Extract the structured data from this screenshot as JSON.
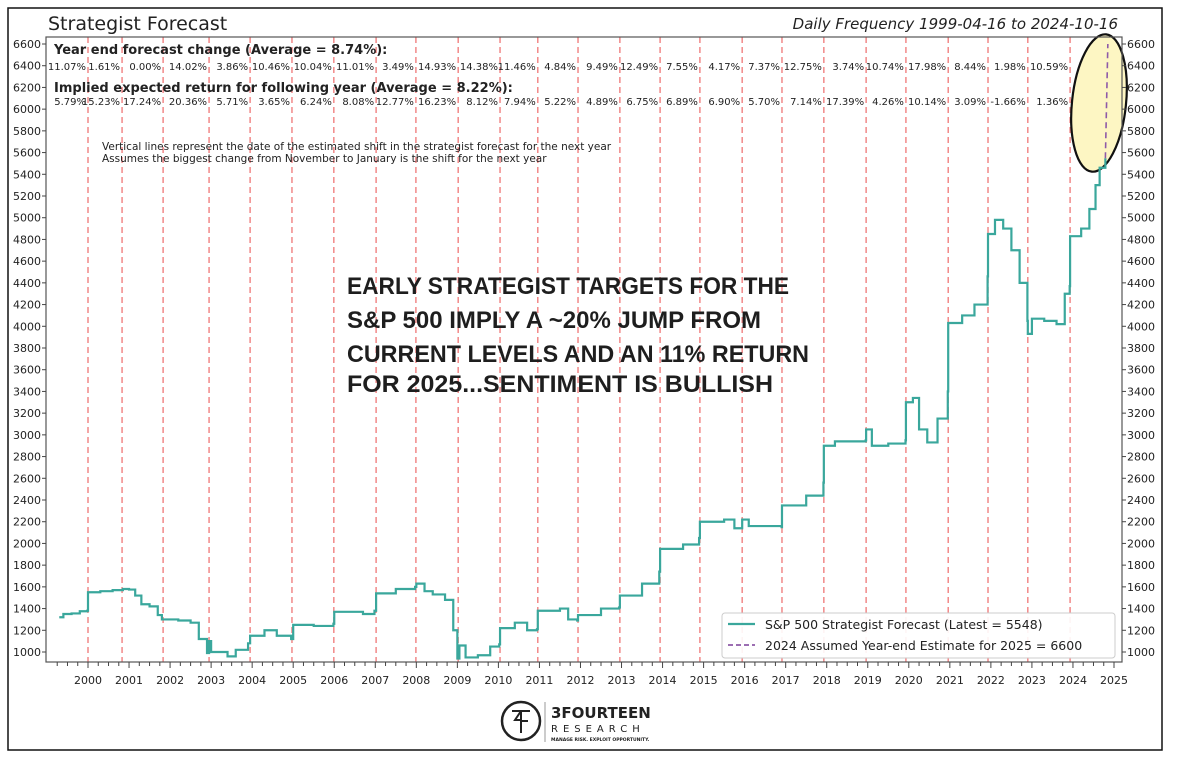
{
  "chart_data": {
    "type": "line",
    "title": "Strategist Forecast",
    "subtitle": "Daily Frequency 1999-04-16 to 2024-10-16",
    "xlim": [
      1999.3,
      2025.15
    ],
    "ylim": [
      880,
      6680
    ],
    "x_ticks": [
      "2000",
      "2001",
      "2002",
      "2003",
      "2004",
      "2005",
      "2006",
      "2007",
      "2008",
      "2009",
      "2010",
      "2011",
      "2012",
      "2013",
      "2014",
      "2015",
      "2016",
      "2017",
      "2018",
      "2019",
      "2020",
      "2021",
      "2022",
      "2023",
      "2024",
      "2025"
    ],
    "y_ticks": [
      1000,
      1200,
      1400,
      1600,
      1800,
      2000,
      2200,
      2400,
      2600,
      2800,
      3000,
      3200,
      3400,
      3600,
      3800,
      4000,
      4200,
      4400,
      4600,
      4800,
      5000,
      5200,
      5400,
      5600,
      5800,
      6000,
      6200,
      6400,
      6600
    ],
    "grid": false,
    "legend_placement": "lower-right",
    "colors": {
      "forecast": "#3aa79c",
      "estimate": "#8e5aa8",
      "shift_lines": "#f08080",
      "highlight_fill": "#fdf6c3"
    },
    "series": [
      {
        "name": "S&P 500 Strategist Forecast (Latest = 5548)",
        "style": "step-solid",
        "points": [
          [
            1999.3,
            1320
          ],
          [
            1999.4,
            1350
          ],
          [
            1999.6,
            1355
          ],
          [
            1999.8,
            1375
          ],
          [
            1999.98,
            1380
          ],
          [
            2000.0,
            1550
          ],
          [
            2000.3,
            1560
          ],
          [
            2000.6,
            1570
          ],
          [
            2000.85,
            1580
          ],
          [
            2001.0,
            1575
          ],
          [
            2001.15,
            1520
          ],
          [
            2001.3,
            1440
          ],
          [
            2001.5,
            1420
          ],
          [
            2001.7,
            1340
          ],
          [
            2001.8,
            1300
          ],
          [
            2002.2,
            1290
          ],
          [
            2002.5,
            1270
          ],
          [
            2002.7,
            1120
          ],
          [
            2002.9,
            990
          ],
          [
            2002.95,
            1100
          ],
          [
            2003.0,
            1000
          ],
          [
            2003.4,
            960
          ],
          [
            2003.6,
            1020
          ],
          [
            2003.9,
            1080
          ],
          [
            2003.95,
            1150
          ],
          [
            2004.3,
            1200
          ],
          [
            2004.6,
            1150
          ],
          [
            2004.95,
            1120
          ],
          [
            2005.0,
            1250
          ],
          [
            2005.5,
            1240
          ],
          [
            2005.98,
            1260
          ],
          [
            2006.0,
            1370
          ],
          [
            2006.7,
            1350
          ],
          [
            2006.98,
            1380
          ],
          [
            2007.02,
            1540
          ],
          [
            2007.5,
            1580
          ],
          [
            2007.97,
            1600
          ],
          [
            2008.0,
            1630
          ],
          [
            2008.2,
            1560
          ],
          [
            2008.4,
            1530
          ],
          [
            2008.7,
            1480
          ],
          [
            2008.9,
            1200
          ],
          [
            2009.0,
            940
          ],
          [
            2009.05,
            1060
          ],
          [
            2009.2,
            950
          ],
          [
            2009.5,
            970
          ],
          [
            2009.8,
            1050
          ],
          [
            2010.02,
            1070
          ],
          [
            2010.04,
            1220
          ],
          [
            2010.4,
            1270
          ],
          [
            2010.7,
            1200
          ],
          [
            2010.94,
            1210
          ],
          [
            2010.96,
            1380
          ],
          [
            2011.5,
            1400
          ],
          [
            2011.7,
            1300
          ],
          [
            2011.92,
            1290
          ],
          [
            2011.94,
            1340
          ],
          [
            2012.5,
            1400
          ],
          [
            2012.94,
            1410
          ],
          [
            2012.96,
            1520
          ],
          [
            2013.5,
            1630
          ],
          [
            2013.92,
            1740
          ],
          [
            2013.94,
            1950
          ],
          [
            2014.5,
            1990
          ],
          [
            2014.89,
            2050
          ],
          [
            2014.91,
            2200
          ],
          [
            2015.5,
            2220
          ],
          [
            2015.75,
            2140
          ],
          [
            2015.93,
            2140
          ],
          [
            2015.94,
            2220
          ],
          [
            2016.1,
            2160
          ],
          [
            2016.9,
            2150
          ],
          [
            2016.91,
            2350
          ],
          [
            2017.5,
            2440
          ],
          [
            2017.92,
            2560
          ],
          [
            2017.93,
            2900
          ],
          [
            2018.2,
            2940
          ],
          [
            2018.95,
            2950
          ],
          [
            2018.96,
            3050
          ],
          [
            2019.1,
            2900
          ],
          [
            2019.5,
            2920
          ],
          [
            2019.92,
            2950
          ],
          [
            2019.93,
            3300
          ],
          [
            2020.1,
            3340
          ],
          [
            2020.25,
            3050
          ],
          [
            2020.45,
            2930
          ],
          [
            2020.7,
            3150
          ],
          [
            2020.95,
            3400
          ],
          [
            2020.96,
            4030
          ],
          [
            2021.3,
            4100
          ],
          [
            2021.6,
            4200
          ],
          [
            2021.92,
            4460
          ],
          [
            2021.93,
            4850
          ],
          [
            2022.1,
            4980
          ],
          [
            2022.3,
            4900
          ],
          [
            2022.5,
            4700
          ],
          [
            2022.7,
            4400
          ],
          [
            2022.89,
            4050
          ],
          [
            2022.9,
            3930
          ],
          [
            2023.0,
            4070
          ],
          [
            2023.3,
            4050
          ],
          [
            2023.6,
            4020
          ],
          [
            2023.8,
            4300
          ],
          [
            2023.92,
            4370
          ],
          [
            2023.93,
            4830
          ],
          [
            2024.2,
            4900
          ],
          [
            2024.4,
            5080
          ],
          [
            2024.55,
            5300
          ],
          [
            2024.65,
            5460
          ],
          [
            2024.79,
            5548
          ]
        ]
      },
      {
        "name": "2024 Assumed Year-end Estimate for 2025 = 6600",
        "style": "dashed",
        "points": [
          [
            2024.79,
            5548
          ],
          [
            2024.85,
            6600
          ]
        ]
      }
    ],
    "shift_dates": [
      2000.0,
      2000.83,
      2001.83,
      2002.95,
      2003.95,
      2004.97,
      2005.99,
      2007.02,
      2007.99,
      2009.02,
      2010.04,
      2010.96,
      2011.94,
      2012.96,
      2013.94,
      2014.91,
      2015.94,
      2016.91,
      2017.93,
      2018.96,
      2019.93,
      2020.96,
      2021.93,
      2022.9,
      2023.93
    ],
    "year_end_change": {
      "label": "Year end forecast change (Average = 8.74%):",
      "values": [
        "11.07%",
        "1.61%",
        "0.00%",
        "14.02%",
        "3.86%",
        "10.46%",
        "10.04%",
        "11.01%",
        "3.49%",
        "14.93%",
        "14.38%",
        "11.46%",
        "4.84%",
        "9.49%",
        "12.49%",
        "7.55%",
        "4.17%",
        "7.37%",
        "12.75%",
        "3.74%",
        "10.74%",
        "17.98%",
        "8.44%",
        "1.98%",
        "10.59%"
      ]
    },
    "implied_return": {
      "label": "Implied expected return for following year (Average = 8.22%):",
      "values": [
        "5.79%",
        "15.23%",
        "17.24%",
        "20.36%",
        "5.71%",
        "3.65%",
        "6.24%",
        "8.08%",
        "12.77%",
        "16.23%",
        "8.12%",
        "7.94%",
        "5.22%",
        "4.89%",
        "6.75%",
        "6.89%",
        "6.90%",
        "5.70%",
        "7.14%",
        "17.39%",
        "4.26%",
        "10.14%",
        "3.09%",
        "-1.66%",
        "1.36%"
      ]
    },
    "notes": [
      "Vertical lines represent the date of the estimated shift in the strategist forecast for the next year",
      "Assumes the biggest change from November to January is the shift for the next year"
    ],
    "headline": [
      "EARLY STRATEGIST TARGETS FOR THE",
      "S&P 500 IMPLY A ~20% JUMP FROM",
      "CURRENT LEVELS AND AN 11% RETURN",
      "FOR 2025...SENTIMENT IS BULLISH"
    ]
  },
  "logo": {
    "name": "3FOURTEEN",
    "sub": "RESEARCH",
    "tagline": "MANAGE RISK. EXPLOIT OPPORTUNITY."
  }
}
